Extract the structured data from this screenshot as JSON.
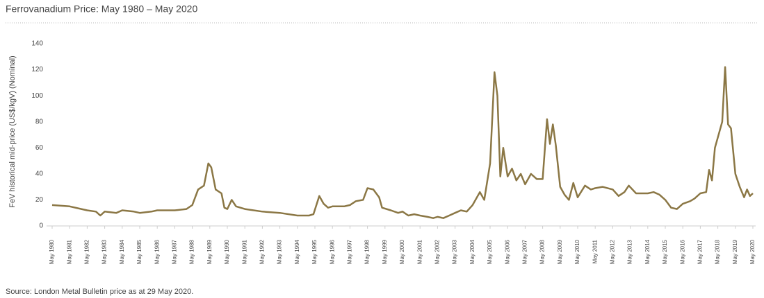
{
  "chart_data": {
    "type": "line",
    "title": "Ferrovanadium Price: May 1980 – May 2020",
    "y_label": "FeV historical mid-price (US$/kgV) (Nominal)",
    "source": "Source: London Metal Bulletin price as at 29 May 2020.",
    "color": "#8b7745",
    "ylim": [
      0,
      140
    ],
    "yticks": [
      0,
      20,
      40,
      60,
      80,
      100,
      120,
      140
    ],
    "xlim": [
      "1980-05",
      "2020-05"
    ],
    "xticks": [
      {
        "value": "1980-05",
        "label": "May 1980"
      },
      {
        "value": "1981-05",
        "label": "May 1981"
      },
      {
        "value": "1982-05",
        "label": "May 1982"
      },
      {
        "value": "1983-05",
        "label": "May 1983"
      },
      {
        "value": "1984-05",
        "label": "May 1984"
      },
      {
        "value": "1985-05",
        "label": "May 1985"
      },
      {
        "value": "1986-05",
        "label": "May 1986"
      },
      {
        "value": "1987-05",
        "label": "May 1987"
      },
      {
        "value": "1988-05",
        "label": "May 1988"
      },
      {
        "value": "1989-05",
        "label": "May 1989"
      },
      {
        "value": "1990-05",
        "label": "May 1990"
      },
      {
        "value": "1991-05",
        "label": "May 1991"
      },
      {
        "value": "1992-05",
        "label": "May 1992"
      },
      {
        "value": "1993-05",
        "label": "May 1993"
      },
      {
        "value": "1994-05",
        "label": "May 1994"
      },
      {
        "value": "1995-05",
        "label": "May 1995"
      },
      {
        "value": "1996-05",
        "label": "May 1996"
      },
      {
        "value": "1997-05",
        "label": "May 1997"
      },
      {
        "value": "1998-05",
        "label": "May 1998"
      },
      {
        "value": "1999-05",
        "label": "May 1999"
      },
      {
        "value": "2000-05",
        "label": "May 2000"
      },
      {
        "value": "2001-05",
        "label": "May 2001"
      },
      {
        "value": "2002-05",
        "label": "May 2002"
      },
      {
        "value": "2003-05",
        "label": "May 2003"
      },
      {
        "value": "2004-05",
        "label": "May 2004"
      },
      {
        "value": "2005-05",
        "label": "May 2005"
      },
      {
        "value": "2006-05",
        "label": "May 2006"
      },
      {
        "value": "2007-05",
        "label": "May 2007"
      },
      {
        "value": "2008-05",
        "label": "May 2008"
      },
      {
        "value": "2009-05",
        "label": "May 2009"
      },
      {
        "value": "2010-05",
        "label": "May 2010"
      },
      {
        "value": "2011-05",
        "label": "May 2011"
      },
      {
        "value": "2012-05",
        "label": "May 2012"
      },
      {
        "value": "2013-05",
        "label": "May 2013"
      },
      {
        "value": "2014-05",
        "label": "May 2014"
      },
      {
        "value": "2015-05",
        "label": "May 2015"
      },
      {
        "value": "2016-05",
        "label": "May 2016"
      },
      {
        "value": "2017-05",
        "label": "May 2017"
      },
      {
        "value": "2018-05",
        "label": "May 2018"
      },
      {
        "value": "2019-05",
        "label": "May 2019"
      },
      {
        "value": "2020-05",
        "label": "May 2020"
      }
    ],
    "x": [
      "1980-05",
      "1981-05",
      "1982-01",
      "1982-05",
      "1982-11",
      "1983-02",
      "1983-05",
      "1984-01",
      "1984-05",
      "1985-01",
      "1985-05",
      "1986-01",
      "1986-05",
      "1987-05",
      "1988-01",
      "1988-05",
      "1988-09",
      "1989-01",
      "1989-04",
      "1989-06",
      "1989-09",
      "1990-01",
      "1990-03",
      "1990-05",
      "1990-08",
      "1990-11",
      "1991-05",
      "1992-05",
      "1993-05",
      "1994-05",
      "1995-01",
      "1995-04",
      "1995-08",
      "1995-11",
      "1996-02",
      "1996-05",
      "1997-01",
      "1997-05",
      "1997-09",
      "1998-02",
      "1998-05",
      "1998-09",
      "1999-01",
      "1999-03",
      "1999-09",
      "2000-02",
      "2000-05",
      "2000-09",
      "2001-01",
      "2001-05",
      "2001-10",
      "2002-02",
      "2002-05",
      "2002-09",
      "2003-01",
      "2003-05",
      "2003-09",
      "2004-01",
      "2004-05",
      "2004-10",
      "2005-01",
      "2005-05",
      "2005-08",
      "2005-10",
      "2005-12",
      "2006-02",
      "2006-05",
      "2006-08",
      "2006-11",
      "2007-02",
      "2007-05",
      "2007-09",
      "2008-01",
      "2008-05",
      "2008-08",
      "2008-10",
      "2008-12",
      "2009-02",
      "2009-05",
      "2009-08",
      "2009-11",
      "2010-02",
      "2010-05",
      "2010-10",
      "2011-02",
      "2011-05",
      "2011-10",
      "2012-05",
      "2012-09",
      "2013-01",
      "2013-04",
      "2013-09",
      "2014-05",
      "2014-09",
      "2015-01",
      "2015-05",
      "2015-09",
      "2016-01",
      "2016-05",
      "2016-10",
      "2017-01",
      "2017-05",
      "2017-09",
      "2017-11",
      "2018-01",
      "2018-03",
      "2018-05",
      "2018-08",
      "2018-10",
      "2018-12",
      "2019-02",
      "2019-05",
      "2019-08",
      "2019-11",
      "2020-01",
      "2020-03",
      "2020-05"
    ],
    "values": [
      16,
      15,
      13,
      12,
      11,
      8,
      11,
      10,
      12,
      11,
      10,
      11,
      12,
      12,
      13,
      16,
      28,
      31,
      48,
      45,
      28,
      25,
      14,
      13,
      20,
      15,
      13,
      11,
      10,
      8,
      8,
      9,
      23,
      17,
      14,
      15,
      15,
      16,
      19,
      20,
      29,
      28,
      22,
      14,
      12,
      10,
      11,
      8,
      9,
      8,
      7,
      6,
      7,
      6,
      8,
      10,
      12,
      11,
      16,
      26,
      20,
      48,
      118,
      100,
      38,
      60,
      38,
      44,
      35,
      40,
      32,
      40,
      36,
      36,
      82,
      63,
      78,
      62,
      30,
      24,
      20,
      33,
      22,
      31,
      28,
      29,
      30,
      28,
      23,
      26,
      31,
      25,
      25,
      26,
      24,
      20,
      14,
      13,
      17,
      19,
      21,
      25,
      26,
      43,
      35,
      60,
      68,
      80,
      122,
      78,
      75,
      40,
      30,
      22,
      28,
      23,
      25
    ]
  }
}
